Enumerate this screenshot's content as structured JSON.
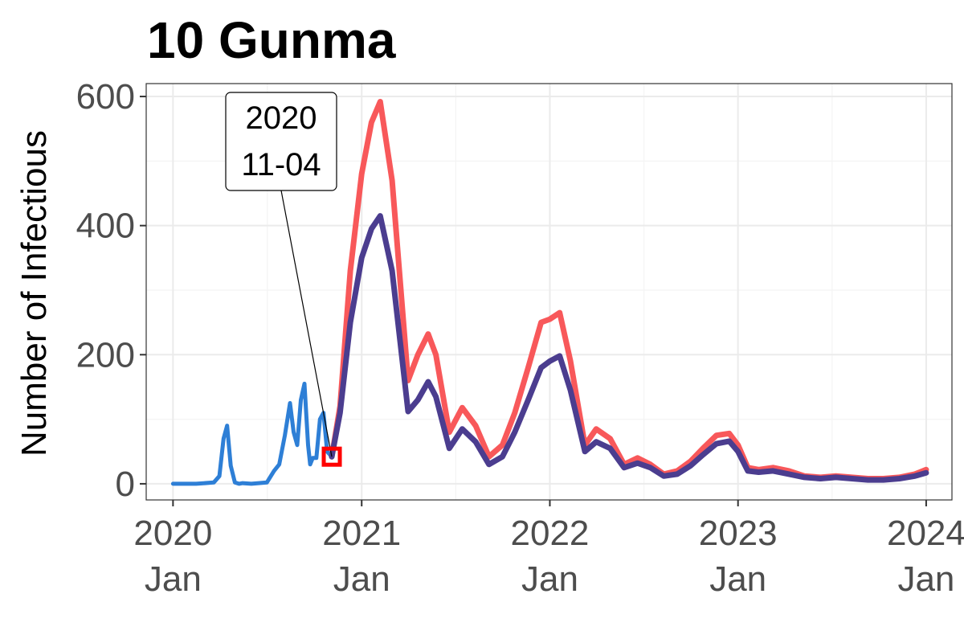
{
  "chart_data": {
    "type": "line",
    "title": "10 Gunma",
    "ylabel": "Number of Infectious",
    "xlabel": "",
    "ylim": [
      -25,
      620
    ],
    "xlim": [
      "2019-11-10",
      "2024-02-20"
    ],
    "y_ticks": [
      0,
      200,
      400,
      600
    ],
    "x_ticks": [
      {
        "date": "2020-01-01",
        "line1": "2020",
        "line2": "Jan"
      },
      {
        "date": "2021-01-01",
        "line1": "2021",
        "line2": "Jan"
      },
      {
        "date": "2022-01-01",
        "line1": "2022",
        "line2": "Jan"
      },
      {
        "date": "2023-01-01",
        "line1": "2023",
        "line2": "Jan"
      },
      {
        "date": "2024-01-01",
        "line1": "2024",
        "line2": "Jan"
      }
    ],
    "grid": true,
    "legend": "none",
    "annotation": {
      "date": "2020-11-04",
      "value": 42,
      "line1": "2020",
      "line2": "11-04",
      "marker_color": "#ff0000"
    },
    "series": [
      {
        "color": "#2e7fd6",
        "x": [
          "2020-01-01",
          "2020-02-15",
          "2020-03-20",
          "2020-03-31",
          "2020-04-08",
          "2020-04-15",
          "2020-04-22",
          "2020-04-30",
          "2020-05-08",
          "2020-05-15",
          "2020-06-01",
          "2020-06-15",
          "2020-07-01",
          "2020-07-15",
          "2020-07-25",
          "2020-08-05",
          "2020-08-15",
          "2020-08-22",
          "2020-08-29",
          "2020-09-05",
          "2020-09-12",
          "2020-09-19",
          "2020-09-23",
          "2020-09-28",
          "2020-10-05",
          "2020-10-12",
          "2020-10-19",
          "2020-10-26",
          "2020-11-04"
        ],
        "values": [
          0,
          0,
          2,
          12,
          70,
          90,
          28,
          2,
          0,
          1,
          0,
          1,
          2,
          20,
          30,
          75,
          125,
          80,
          60,
          130,
          155,
          60,
          30,
          40,
          40,
          100,
          110,
          50,
          42
        ]
      },
      {
        "color": "#f8585a",
        "x": [
          "2020-11-04",
          "2020-11-20",
          "2020-12-10",
          "2021-01-01",
          "2021-01-20",
          "2021-02-06",
          "2021-03-01",
          "2021-04-01",
          "2021-04-20",
          "2021-05-10",
          "2021-05-25",
          "2021-06-20",
          "2021-07-15",
          "2021-08-10",
          "2021-09-05",
          "2021-10-01",
          "2021-10-25",
          "2021-11-20",
          "2021-12-15",
          "2022-01-01",
          "2022-01-20",
          "2022-02-10",
          "2022-03-10",
          "2022-04-01",
          "2022-04-28",
          "2022-05-25",
          "2022-06-20",
          "2022-07-15",
          "2022-08-10",
          "2022-09-05",
          "2022-10-01",
          "2022-10-25",
          "2022-11-20",
          "2022-12-15",
          "2023-01-01",
          "2023-01-20",
          "2023-02-10",
          "2023-03-10",
          "2023-04-10",
          "2023-05-10",
          "2023-06-10",
          "2023-07-10",
          "2023-08-10",
          "2023-09-10",
          "2023-10-10",
          "2023-11-10",
          "2023-12-10",
          "2024-01-01"
        ],
        "values": [
          42,
          120,
          330,
          480,
          560,
          592,
          470,
          160,
          200,
          232,
          200,
          80,
          118,
          90,
          42,
          60,
          110,
          180,
          250,
          255,
          265,
          190,
          60,
          85,
          70,
          30,
          40,
          30,
          15,
          20,
          35,
          55,
          75,
          78,
          60,
          25,
          22,
          25,
          20,
          12,
          10,
          12,
          10,
          8,
          8,
          10,
          15,
          22
        ]
      },
      {
        "color": "#4b3d8f",
        "x": [
          "2020-11-04",
          "2020-11-20",
          "2020-12-10",
          "2021-01-01",
          "2021-01-20",
          "2021-02-06",
          "2021-03-01",
          "2021-04-01",
          "2021-04-20",
          "2021-05-10",
          "2021-05-25",
          "2021-06-20",
          "2021-07-15",
          "2021-08-10",
          "2021-09-05",
          "2021-10-01",
          "2021-10-25",
          "2021-11-20",
          "2021-12-15",
          "2022-01-01",
          "2022-01-20",
          "2022-02-10",
          "2022-03-10",
          "2022-04-01",
          "2022-04-28",
          "2022-05-25",
          "2022-06-20",
          "2022-07-15",
          "2022-08-10",
          "2022-09-05",
          "2022-10-01",
          "2022-10-25",
          "2022-11-20",
          "2022-12-15",
          "2023-01-01",
          "2023-01-20",
          "2023-02-10",
          "2023-03-10",
          "2023-04-10",
          "2023-05-10",
          "2023-06-10",
          "2023-07-10",
          "2023-08-10",
          "2023-09-10",
          "2023-10-10",
          "2023-11-10",
          "2023-12-10",
          "2024-01-01"
        ],
        "values": [
          42,
          110,
          250,
          350,
          395,
          415,
          330,
          112,
          130,
          158,
          135,
          55,
          85,
          65,
          30,
          42,
          80,
          130,
          180,
          190,
          198,
          145,
          50,
          65,
          55,
          25,
          32,
          25,
          12,
          15,
          28,
          45,
          62,
          66,
          50,
          20,
          18,
          20,
          15,
          10,
          8,
          10,
          8,
          6,
          6,
          8,
          12,
          17
        ]
      }
    ]
  }
}
